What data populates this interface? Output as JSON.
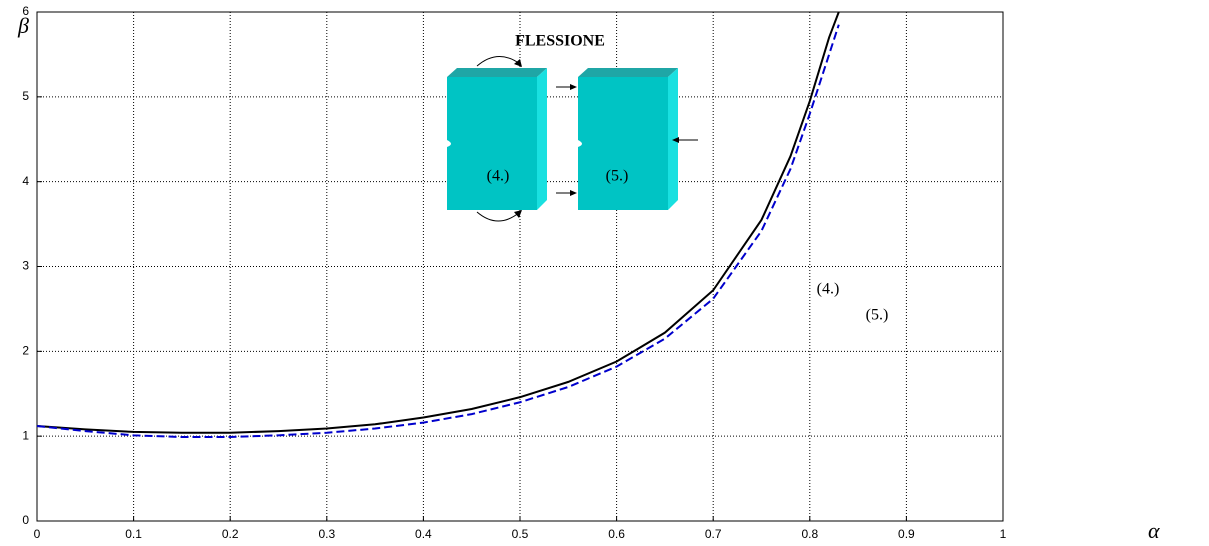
{
  "chart_data": {
    "type": "line",
    "x": [
      0,
      0.05,
      0.1,
      0.15,
      0.2,
      0.25,
      0.3,
      0.35,
      0.4,
      0.45,
      0.5,
      0.55,
      0.6,
      0.65,
      0.7,
      0.75,
      0.78,
      0.8,
      0.82,
      0.83
    ],
    "series": [
      {
        "name": "(4.)",
        "color": "#000000",
        "dashed": false,
        "values": [
          1.12,
          1.08,
          1.05,
          1.04,
          1.04,
          1.06,
          1.09,
          1.14,
          1.22,
          1.32,
          1.46,
          1.64,
          1.88,
          2.22,
          2.72,
          3.55,
          4.3,
          4.95,
          5.7,
          6.0
        ]
      },
      {
        "name": "(5.)",
        "color": "#0000cc",
        "dashed": true,
        "values": [
          1.12,
          1.06,
          1.01,
          0.99,
          0.99,
          1.01,
          1.04,
          1.09,
          1.16,
          1.26,
          1.4,
          1.58,
          1.82,
          2.15,
          2.62,
          3.42,
          4.15,
          4.8,
          5.5,
          5.85
        ]
      }
    ],
    "xlabel": "α",
    "ylabel": "β",
    "xlim": [
      0,
      1
    ],
    "ylim": [
      0,
      6
    ],
    "xticks": [
      0,
      0.1,
      0.2,
      0.3,
      0.4,
      0.5,
      0.6,
      0.7,
      0.8,
      0.9,
      1
    ],
    "yticks": [
      0,
      1,
      2,
      3,
      4,
      5,
      6
    ],
    "grid": true,
    "annotations": [
      "FLESSIONE",
      "(4.)",
      "(5.)"
    ]
  }
}
